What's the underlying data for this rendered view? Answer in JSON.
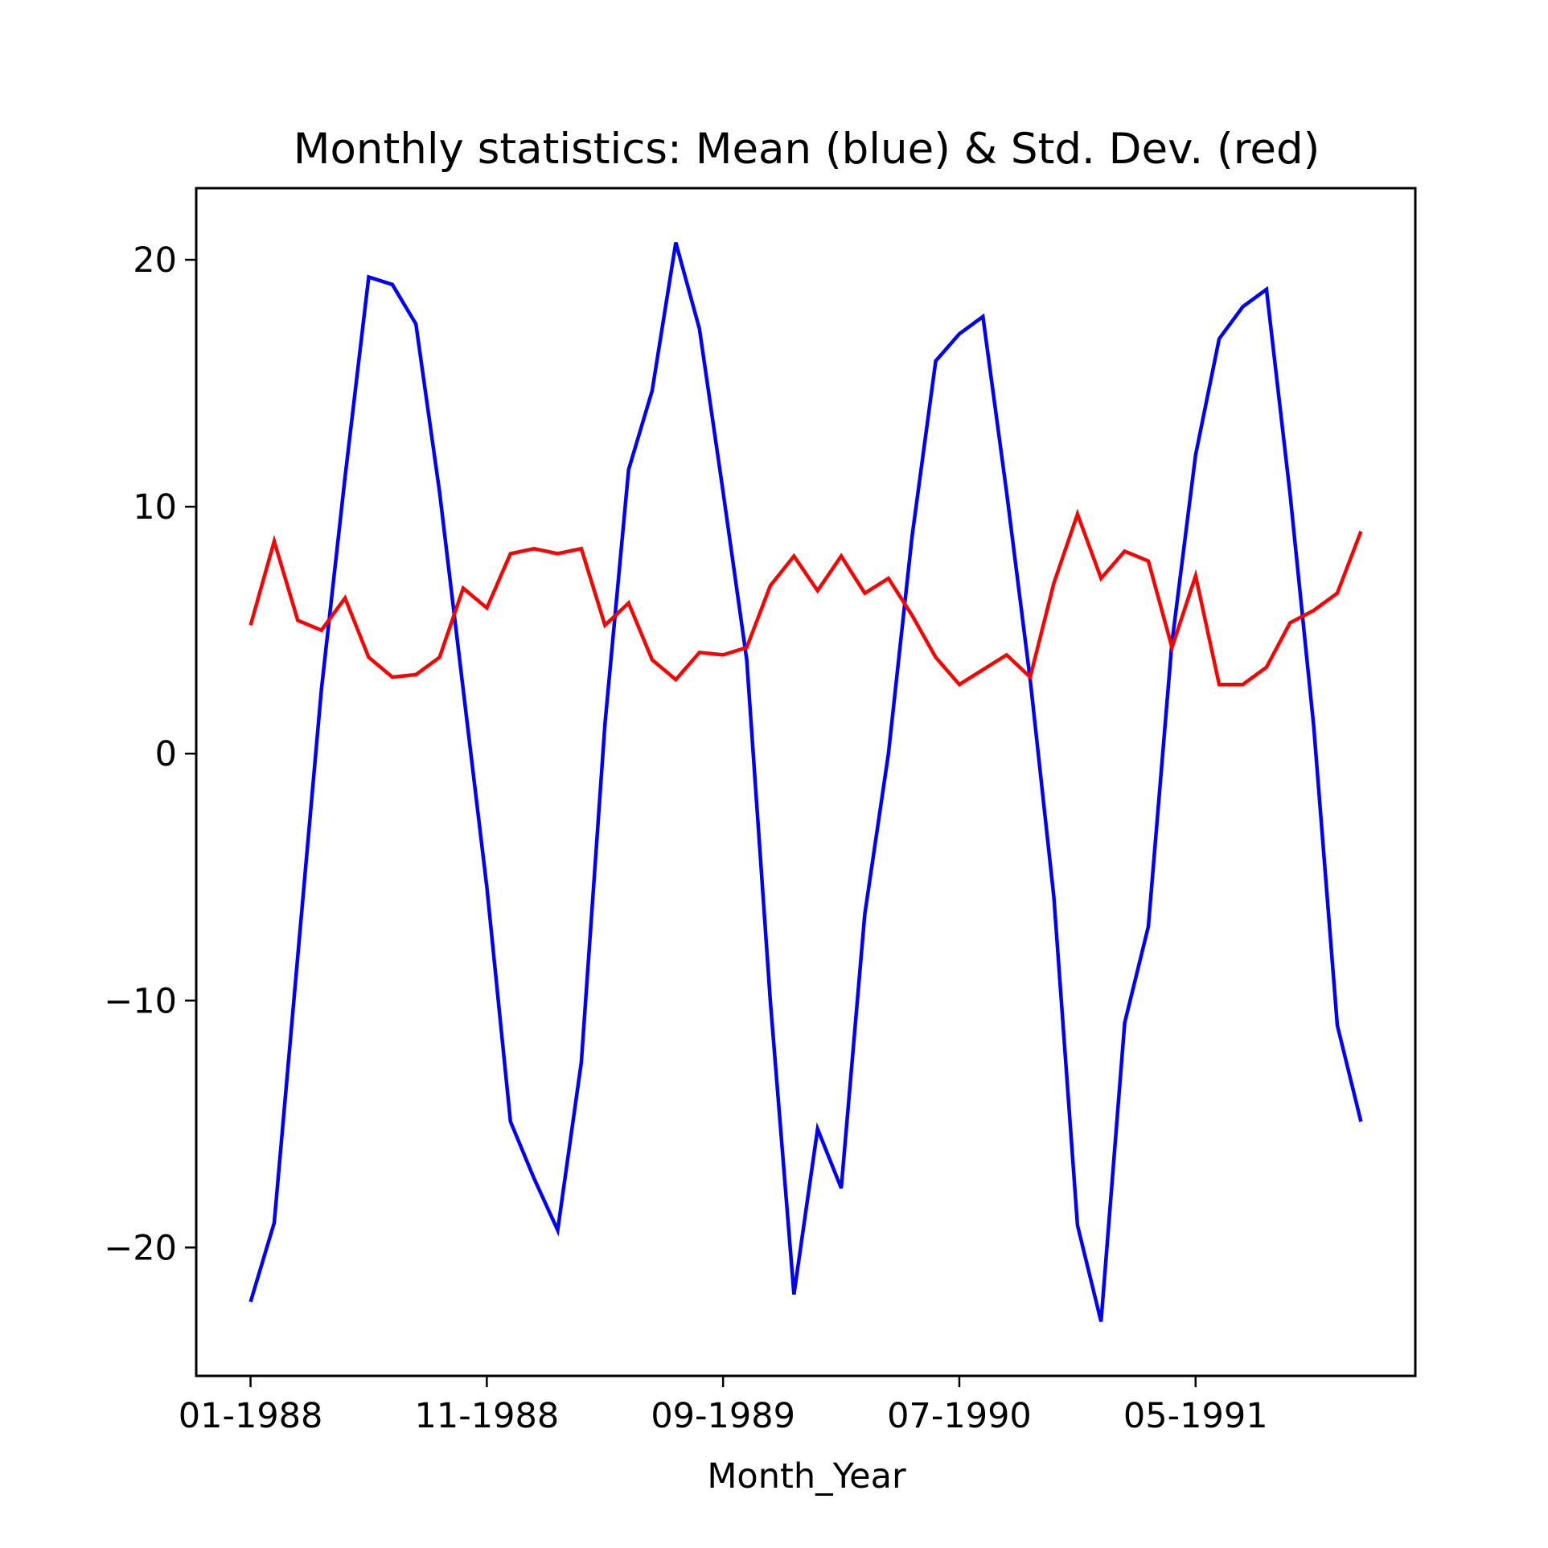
{
  "chart_data": {
    "type": "line",
    "title": "Monthly statistics: Mean (blue) & Std. Dev. (red)",
    "xlabel": "Month_Year",
    "ylabel": "",
    "x": [
      "01-1988",
      "02-1988",
      "03-1988",
      "04-1988",
      "05-1988",
      "06-1988",
      "07-1988",
      "08-1988",
      "09-1988",
      "10-1988",
      "11-1988",
      "12-1988",
      "01-1989",
      "02-1989",
      "03-1989",
      "04-1989",
      "05-1989",
      "06-1989",
      "07-1989",
      "08-1989",
      "09-1989",
      "10-1989",
      "11-1989",
      "12-1989",
      "01-1990",
      "02-1990",
      "03-1990",
      "04-1990",
      "05-1990",
      "06-1990",
      "07-1990",
      "08-1990",
      "09-1990",
      "10-1990",
      "11-1990",
      "12-1990",
      "01-1991",
      "02-1991",
      "03-1991",
      "04-1991",
      "05-1991",
      "06-1991",
      "07-1991",
      "08-1991",
      "09-1991",
      "10-1991",
      "11-1991",
      "12-1991"
    ],
    "x_ticks": [
      "01-1988",
      "11-1988",
      "09-1989",
      "07-1990",
      "05-1991"
    ],
    "y_ticks": [
      20,
      10,
      0,
      -10,
      -20
    ],
    "y_tick_labels": [
      "20",
      "10",
      "0",
      "−10",
      "−20"
    ],
    "xlim": [
      -2.3,
      49.3
    ],
    "ylim": [
      -25.2,
      22.9
    ],
    "grid": false,
    "series": [
      {
        "color": "#0000ff",
        "values": [
          -22.2,
          -19.0,
          -8.2,
          2.6,
          11.2,
          19.3,
          19.0,
          17.4,
          10.6,
          2.6,
          -5.4,
          -14.9,
          -17.2,
          -19.3,
          -12.5,
          1.2,
          11.5,
          14.7,
          20.7,
          17.2,
          10.6,
          3.8,
          -10.0,
          -21.9,
          -15.2,
          -17.6,
          -6.5,
          0.0,
          8.8,
          15.9,
          17.0,
          17.7,
          10.6,
          3.0,
          -5.8,
          -19.1,
          -23.0,
          -10.9,
          -7.0,
          4.5,
          12.1,
          16.8,
          18.1,
          18.8,
          10.5,
          1.1,
          -11.0,
          -14.9
        ]
      },
      {
        "color": "#ff0000",
        "values": [
          5.2,
          8.6,
          5.4,
          5.0,
          6.3,
          3.9,
          3.1,
          3.2,
          3.9,
          6.7,
          5.9,
          8.1,
          8.3,
          8.1,
          8.3,
          5.2,
          6.1,
          3.8,
          3.0,
          4.1,
          4.0,
          4.3,
          6.8,
          8.0,
          6.6,
          8.0,
          6.5,
          7.1,
          5.6,
          3.9,
          2.8,
          3.4,
          4.0,
          3.1,
          6.9,
          9.7,
          7.1,
          8.2,
          7.8,
          4.3,
          7.2,
          2.8,
          2.8,
          3.5,
          5.3,
          5.8,
          6.5,
          9.0
        ]
      }
    ]
  }
}
